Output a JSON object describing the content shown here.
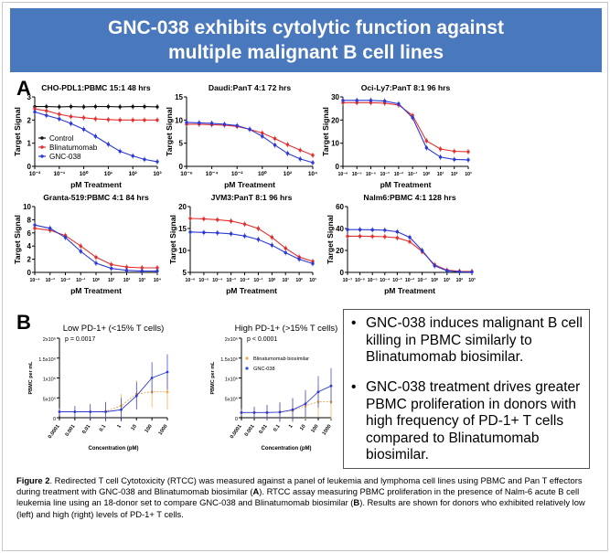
{
  "header": {
    "title_line1": "GNC-038 exhibits cytolytic function against",
    "title_line2": "multiple malignant B cell lines"
  },
  "panel_a_letter": "A",
  "panel_b_letter": "B",
  "panel_a_legend": {
    "control": "Control",
    "blina": "Blinatumomab",
    "gnc": "GNC-038"
  },
  "colors": {
    "header_bg": "#4a78bd",
    "control": "#111111",
    "blinatumomab": "#e23030",
    "gnc038": "#2b39d6",
    "blina_biosimilar": "#f0a84a",
    "gnc_b": "#2b4fd8"
  },
  "chart_data": [
    {
      "id": "a1",
      "type": "line",
      "title": "CHO-PDL1:PBMC 15:1 48 hrs",
      "xlabel": "pM Treatment",
      "ylabel": "Target Signal",
      "xscale": "log",
      "xlim": [
        0.01,
        1000
      ],
      "ylim": [
        0,
        3
      ],
      "xtick_labels": [
        "10⁻²",
        "10⁻¹",
        "10⁰",
        "10¹",
        "10²",
        "10³"
      ],
      "ytick_labels": [
        "0",
        "1",
        "2",
        "3"
      ],
      "series": [
        {
          "name": "Control",
          "x": [
            0.01,
            0.03,
            0.1,
            0.3,
            1,
            3,
            10,
            30,
            100,
            300,
            1000
          ],
          "values": [
            2.58,
            2.58,
            2.57,
            2.58,
            2.57,
            2.58,
            2.58,
            2.57,
            2.58,
            2.58,
            2.57
          ]
        },
        {
          "name": "Blinatumomab",
          "x": [
            0.01,
            0.03,
            0.1,
            0.3,
            1,
            3,
            10,
            30,
            100,
            300,
            1000
          ],
          "values": [
            2.48,
            2.4,
            2.25,
            2.15,
            2.1,
            2.05,
            2.02,
            2.0,
            2.0,
            2.0,
            2.0
          ]
        },
        {
          "name": "GNC-038",
          "x": [
            0.01,
            0.03,
            0.1,
            0.3,
            1,
            3,
            10,
            30,
            100,
            300,
            1000
          ],
          "values": [
            2.35,
            2.2,
            2.05,
            1.85,
            1.6,
            1.3,
            0.95,
            0.65,
            0.45,
            0.3,
            0.2
          ]
        }
      ]
    },
    {
      "id": "a2",
      "type": "line",
      "title": "Daudi:PanT 4:1 72 hrs",
      "xlabel": "pM Treatment",
      "ylabel": "Target Signal",
      "xscale": "log",
      "xlim": [
        1e-06,
        10000
      ],
      "ylim": [
        0,
        15
      ],
      "xtick_labels": [
        "10⁻⁶",
        "10⁻⁴",
        "10⁻²",
        "10⁰",
        "10²",
        "10⁴"
      ],
      "ytick_labels": [
        "0",
        "5",
        "10",
        "15"
      ],
      "series": [
        {
          "name": "Blinatumomab",
          "x": [
            1e-06,
            1e-05,
            0.0001,
            0.001,
            0.01,
            0.1,
            1,
            10,
            100,
            1000,
            10000
          ],
          "values": [
            9.1,
            9.1,
            9.0,
            8.9,
            8.6,
            8.0,
            7.2,
            6.0,
            4.7,
            3.5,
            2.4
          ]
        },
        {
          "name": "GNC-038",
          "x": [
            1e-06,
            1e-05,
            0.0001,
            0.001,
            0.01,
            0.1,
            1,
            10,
            100,
            1000,
            10000
          ],
          "values": [
            9.5,
            9.4,
            9.3,
            9.1,
            8.8,
            8.0,
            6.5,
            4.6,
            2.8,
            1.6,
            0.8
          ]
        }
      ]
    },
    {
      "id": "a3",
      "type": "line",
      "title": "Oci-Ly7:PanT 8:1 96 hrs",
      "xlabel": "pM Treatment",
      "ylabel": "Target Signal",
      "xscale": "log",
      "xlim": [
        1e-06,
        1000
      ],
      "ylim": [
        0,
        30
      ],
      "xtick_labels": [
        "10⁻⁶",
        "10⁻⁵",
        "10⁻⁴",
        "10⁻³",
        "10⁻²",
        "10⁻¹",
        "10⁰",
        "10¹",
        "10²",
        "10³"
      ],
      "ytick_labels": [
        "0",
        "10",
        "20",
        "30"
      ],
      "series": [
        {
          "name": "Blinatumomab",
          "x": [
            1e-06,
            1e-05,
            0.0001,
            0.001,
            0.01,
            0.1,
            1,
            10,
            100,
            1000
          ],
          "values": [
            27.5,
            27.5,
            27.5,
            27.3,
            26.5,
            22,
            11,
            7.5,
            6.5,
            6.3
          ]
        },
        {
          "name": "GNC-038",
          "x": [
            1e-06,
            1e-05,
            0.0001,
            0.001,
            0.01,
            0.1,
            1,
            10,
            100,
            1000
          ],
          "values": [
            28.5,
            28.5,
            28.5,
            28.2,
            27,
            21,
            8,
            4,
            3,
            2.8
          ]
        }
      ]
    },
    {
      "id": "a4",
      "type": "line",
      "title": "Granta-519:PBMC 4:1 84 hrs",
      "xlabel": "pM Treatment",
      "ylabel": "Target Signal",
      "xscale": "log",
      "xlim": [
        0.0001,
        10000
      ],
      "ylim": [
        0,
        10
      ],
      "xtick_labels": [
        "10⁻⁴",
        "10⁻³",
        "10⁻²",
        "10⁻¹",
        "10⁰",
        "10¹",
        "10²",
        "10³",
        "10⁴"
      ],
      "ytick_labels": [
        "0",
        "2",
        "4",
        "6",
        "8",
        "10"
      ],
      "series": [
        {
          "name": "Blinatumomab",
          "x": [
            0.0001,
            0.001,
            0.01,
            0.1,
            1,
            10,
            100,
            1000,
            10000
          ],
          "values": [
            6.7,
            6.4,
            5.6,
            4.0,
            2.3,
            1.2,
            0.8,
            0.7,
            0.7
          ]
        },
        {
          "name": "GNC-038",
          "x": [
            0.0001,
            0.001,
            0.01,
            0.1,
            1,
            10,
            100,
            1000,
            10000
          ],
          "values": [
            7.2,
            6.7,
            5.3,
            3.2,
            1.4,
            0.6,
            0.3,
            0.2,
            0.2
          ]
        }
      ]
    },
    {
      "id": "a5",
      "type": "line",
      "title": "JVM3:PanT 8:1 96 hrs",
      "xlabel": "pM Treatment",
      "ylabel": "Target Signal",
      "xscale": "log",
      "xlim": [
        1e-06,
        1000
      ],
      "ylim": [
        5,
        20
      ],
      "xtick_labels": [
        "10⁻⁶",
        "10⁻⁵",
        "10⁻⁴",
        "10⁻³",
        "10⁻²",
        "10⁻¹",
        "10⁰",
        "10¹",
        "10²",
        "10³"
      ],
      "ytick_labels": [
        "5",
        "10",
        "15",
        "20"
      ],
      "series": [
        {
          "name": "Blinatumomab",
          "x": [
            1e-06,
            1e-05,
            0.0001,
            0.001,
            0.01,
            0.1,
            1,
            10,
            100,
            1000
          ],
          "values": [
            17.3,
            17.2,
            17.0,
            16.7,
            16,
            15,
            13,
            10.5,
            8.5,
            7.5
          ]
        },
        {
          "name": "GNC-038",
          "x": [
            1e-06,
            1e-05,
            0.0001,
            0.001,
            0.01,
            0.1,
            1,
            10,
            100,
            1000
          ],
          "values": [
            14.2,
            14.1,
            14.0,
            13.8,
            13.3,
            12.5,
            11.2,
            9.5,
            8,
            7
          ]
        }
      ]
    },
    {
      "id": "a6",
      "type": "line",
      "title": "Nalm6:PBMC 4:1 128 hrs",
      "xlabel": "pM Treatment",
      "ylabel": "Target Signal",
      "xscale": "log",
      "xlim": [
        1e-07,
        1000
      ],
      "ylim": [
        0,
        60
      ],
      "xtick_labels": [
        "10⁻⁷",
        "10⁻⁶",
        "10⁻⁵",
        "10⁻⁴",
        "10⁻³",
        "10⁻²",
        "10⁻¹",
        "10⁰",
        "10¹",
        "10²",
        "10³"
      ],
      "ytick_labels": [
        "0",
        "20",
        "40",
        "60"
      ],
      "series": [
        {
          "name": "Blinatumomab",
          "x": [
            1e-07,
            1e-06,
            1e-05,
            0.0001,
            0.001,
            0.01,
            0.1,
            1,
            10,
            100,
            1000
          ],
          "values": [
            33,
            33,
            32.8,
            32.5,
            31.5,
            28,
            19,
            7,
            2,
            1,
            0.8
          ]
        },
        {
          "name": "GNC-038",
          "x": [
            1e-07,
            1e-06,
            1e-05,
            0.0001,
            0.001,
            0.01,
            0.1,
            1,
            10,
            100,
            1000
          ],
          "values": [
            39,
            39,
            38.8,
            38.5,
            37,
            32,
            20,
            6,
            1.5,
            0.5,
            0.3
          ]
        }
      ]
    },
    {
      "id": "b1",
      "type": "line",
      "title": "Low PD-1+ (<15% T cells)",
      "annotation": "p = 0.0017",
      "xlabel": "Concentration (pM)",
      "ylabel": "PBMC per mL",
      "xscale": "log",
      "xlim": [
        0.0001,
        1000
      ],
      "ylim": [
        0,
        2000000
      ],
      "xtick_labels": [
        "0.0001",
        "0.001",
        "0.01",
        "0.1",
        "1",
        "10",
        "100",
        "1000"
      ],
      "ytick_labels": [
        "0",
        "5x10⁵",
        "1x10⁶",
        "1.5x10⁶",
        "2x10⁶"
      ],
      "series": [
        {
          "name": "Blinatumomab biosimilar",
          "x": [
            0.0001,
            0.001,
            0.01,
            0.1,
            1,
            10,
            100,
            1000
          ],
          "values": [
            150000,
            150000,
            150000,
            160000,
            300000,
            600000,
            650000,
            650000
          ]
        },
        {
          "name": "GNC-038",
          "x": [
            0.0001,
            0.001,
            0.01,
            0.1,
            1,
            10,
            100,
            1000
          ],
          "values": [
            150000,
            150000,
            150000,
            150000,
            200000,
            550000,
            1000000,
            1150000
          ]
        }
      ]
    },
    {
      "id": "b2",
      "type": "line",
      "title": "High PD-1+ (>15% T cells)",
      "annotation": "p < 0.0001",
      "xlabel": "Concentration (pM)",
      "ylabel": "PBMC per mL",
      "xscale": "log",
      "xlim": [
        0.0001,
        1000
      ],
      "ylim": [
        0,
        2000000
      ],
      "xtick_labels": [
        "0.0001",
        "0.001",
        "0.01",
        "0.1",
        "1",
        "10",
        "100",
        "1000"
      ],
      "ytick_labels": [
        "0",
        "5x10⁵",
        "1x10⁶",
        "1.5x10⁶",
        "2x10⁶"
      ],
      "legend": [
        "Blinatumomab biosimilar",
        "GNC-038"
      ],
      "series": [
        {
          "name": "Blinatumomab biosimilar",
          "x": [
            0.0001,
            0.001,
            0.01,
            0.1,
            1,
            10,
            100,
            1000
          ],
          "values": [
            130000,
            130000,
            130000,
            140000,
            180000,
            300000,
            400000,
            400000
          ]
        },
        {
          "name": "GNC-038",
          "x": [
            0.0001,
            0.001,
            0.01,
            0.1,
            1,
            10,
            100,
            1000
          ],
          "values": [
            130000,
            130000,
            130000,
            140000,
            200000,
            350000,
            650000,
            800000
          ]
        }
      ]
    }
  ],
  "bullets": [
    "GNC-038 induces malignant B cell killing in PBMC similarly to Blinatumomab biosimilar.",
    "GNC-038 treatment drives greater PBMC proliferation in donors with high frequency of PD-1+ T cells compared to Blinatumomab biosimilar."
  ],
  "caption": {
    "fig": "Figure 2",
    "t1": ". Redirected T cell Cytotoxicity (RTCC) was measured against a panel of leukemia and lymphoma cell lines using PBMC and Pan T effectors during treatment with GNC-038 and Blinatumomab biosimilar (",
    "a": "A",
    "t2": "). RTCC assay measuring PBMC proliferation in the presence of Nalm-6 acute B cell leukemia line using an 18-donor set to compare GNC-038 and Blinatumomab biosimilar (",
    "b": "B",
    "t3": "). Results are shown for donors who exhibited relatively low (left) and high (right) levels of PD-1+ T cells."
  }
}
